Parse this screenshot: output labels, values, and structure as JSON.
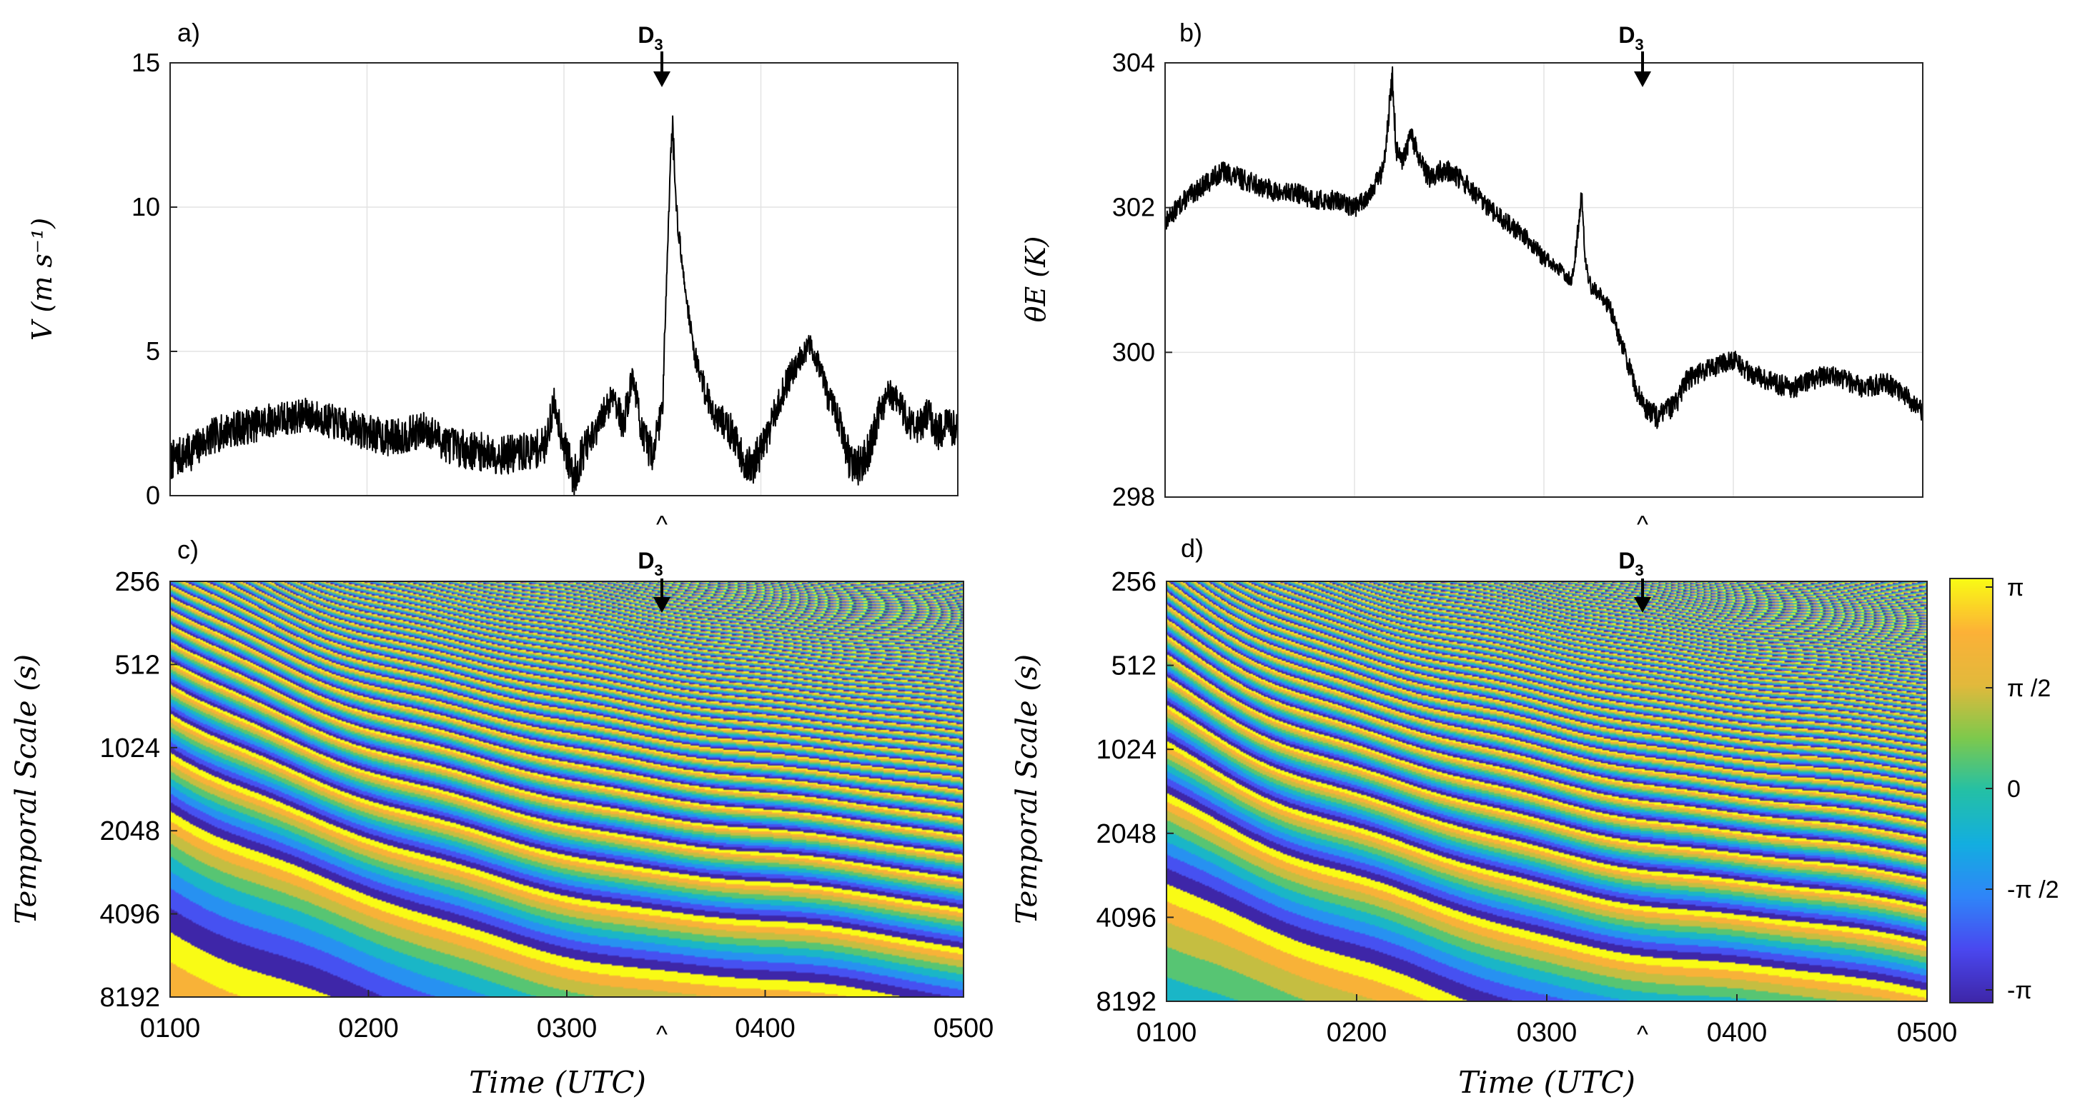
{
  "figure": {
    "event_label_base": "D",
    "event_label_sub": "3",
    "caret": "^",
    "event_time_hour": 3.55
  },
  "chart_data": [
    {
      "id": "a",
      "panel_label": "a)",
      "type": "line",
      "ylabel": "V (m s⁻¹)",
      "xlabel": "",
      "xlim": [
        1,
        5
      ],
      "ylim": [
        0,
        15
      ],
      "yticks": [
        "0",
        "5",
        "10",
        "15"
      ],
      "xticks_hidden": [
        1,
        2,
        3,
        4,
        5
      ],
      "grid": true,
      "series_note": "1 s wind speed trace",
      "x": [
        1.0,
        1.1,
        1.2,
        1.3,
        1.4,
        1.5,
        1.6,
        1.7,
        1.8,
        1.9,
        2.0,
        2.1,
        2.2,
        2.3,
        2.4,
        2.5,
        2.6,
        2.7,
        2.8,
        2.9,
        2.95,
        3.0,
        3.05,
        3.1,
        3.15,
        3.2,
        3.25,
        3.3,
        3.35,
        3.4,
        3.45,
        3.5,
        3.53,
        3.55,
        3.57,
        3.6,
        3.63,
        3.66,
        3.7,
        3.75,
        3.8,
        3.85,
        3.9,
        3.95,
        4.0,
        4.05,
        4.1,
        4.15,
        4.2,
        4.25,
        4.3,
        4.35,
        4.4,
        4.45,
        4.5,
        4.55,
        4.6,
        4.65,
        4.7,
        4.75,
        4.8,
        4.85,
        4.9,
        4.95,
        5.0
      ],
      "y": [
        1.2,
        1.5,
        2.0,
        2.3,
        2.4,
        2.6,
        2.7,
        2.8,
        2.6,
        2.4,
        2.2,
        2.0,
        2.1,
        2.3,
        1.8,
        1.6,
        1.5,
        1.4,
        1.5,
        1.7,
        3.2,
        1.8,
        0.6,
        1.6,
        2.0,
        2.8,
        3.6,
        2.4,
        4.2,
        2.0,
        1.5,
        3.0,
        9.5,
        13.0,
        10.0,
        8.0,
        6.5,
        5.0,
        4.0,
        3.0,
        2.6,
        2.2,
        1.4,
        0.9,
        1.6,
        2.4,
        3.4,
        4.2,
        4.8,
        5.2,
        4.5,
        3.2,
        2.6,
        1.2,
        1.0,
        1.6,
        2.8,
        3.6,
        3.2,
        2.6,
        2.4,
        2.8,
        2.2,
        2.4,
        2.3
      ]
    },
    {
      "id": "b",
      "panel_label": "b)",
      "type": "line",
      "ylabel": "θE (K)",
      "xlabel": "",
      "xlim": [
        1,
        5
      ],
      "ylim": [
        298,
        304
      ],
      "yticks": [
        "298",
        "300",
        "302",
        "304"
      ],
      "xticks_hidden": [
        1,
        2,
        3,
        4,
        5
      ],
      "grid": true,
      "series_note": "1 s equivalent potential temperature trace",
      "x": [
        1.0,
        1.1,
        1.2,
        1.3,
        1.4,
        1.5,
        1.6,
        1.7,
        1.8,
        1.9,
        2.0,
        2.05,
        2.1,
        2.15,
        2.2,
        2.22,
        2.25,
        2.3,
        2.35,
        2.4,
        2.45,
        2.5,
        2.55,
        2.6,
        2.7,
        2.8,
        2.9,
        3.0,
        3.05,
        3.1,
        3.15,
        3.2,
        3.22,
        3.25,
        3.3,
        3.35,
        3.4,
        3.45,
        3.5,
        3.55,
        3.6,
        3.65,
        3.7,
        3.75,
        3.8,
        3.9,
        4.0,
        4.1,
        4.2,
        4.3,
        4.4,
        4.5,
        4.6,
        4.7,
        4.8,
        4.9,
        5.0
      ],
      "y": [
        301.8,
        302.1,
        302.3,
        302.5,
        302.4,
        302.3,
        302.2,
        302.2,
        302.1,
        302.1,
        302.0,
        302.1,
        302.3,
        302.5,
        303.8,
        302.8,
        302.6,
        303.0,
        302.6,
        302.4,
        302.5,
        302.5,
        302.4,
        302.3,
        302.0,
        301.8,
        301.6,
        301.3,
        301.2,
        301.1,
        301.0,
        302.2,
        301.2,
        300.9,
        300.8,
        300.6,
        300.2,
        299.8,
        299.4,
        299.2,
        299.1,
        299.2,
        299.3,
        299.6,
        299.7,
        299.8,
        299.9,
        299.7,
        299.6,
        299.5,
        299.6,
        299.7,
        299.6,
        299.5,
        299.6,
        299.4,
        299.2
      ]
    },
    {
      "id": "c",
      "panel_label": "c)",
      "type": "heatmap",
      "ylabel": "Temporal Scale (s)",
      "xlabel": "Time (UTC)",
      "xlim": [
        1,
        5
      ],
      "xticks": [
        "0100",
        "0200",
        "0300",
        "0400",
        "0500"
      ],
      "yticks": [
        "256",
        "512",
        "1024",
        "2048",
        "4096",
        "8192"
      ],
      "y_scale": "log2",
      "values_note": "wavelet phase of V, range -π to π",
      "base_period_hours": 0.09,
      "tilt": 0.22
    },
    {
      "id": "d",
      "panel_label": "d)",
      "type": "heatmap",
      "ylabel": "Temporal Scale (s)",
      "xlabel": "Time (UTC)",
      "xlim": [
        1,
        5
      ],
      "xticks": [
        "0100",
        "0200",
        "0300",
        "0400",
        "0500"
      ],
      "yticks": [
        "256",
        "512",
        "1024",
        "2048",
        "4096",
        "8192"
      ],
      "y_scale": "log2",
      "values_note": "wavelet phase of θE, range -π to π",
      "base_period_hours": 0.085,
      "tilt": 0.18
    }
  ],
  "colorbar": {
    "ticks": [
      "π",
      "π /2",
      "0",
      "-π /2",
      "-π"
    ],
    "range": [
      -3.1416,
      3.1416
    ],
    "colors": [
      "#3e26a8",
      "#4a48f0",
      "#2f86f8",
      "#13aee0",
      "#24c0a6",
      "#7ec94c",
      "#e2b93c",
      "#fcb137",
      "#f9fb15"
    ]
  },
  "colors": {
    "trace": "#000000",
    "grid": "#e3e3e3",
    "axis": "#262626"
  }
}
